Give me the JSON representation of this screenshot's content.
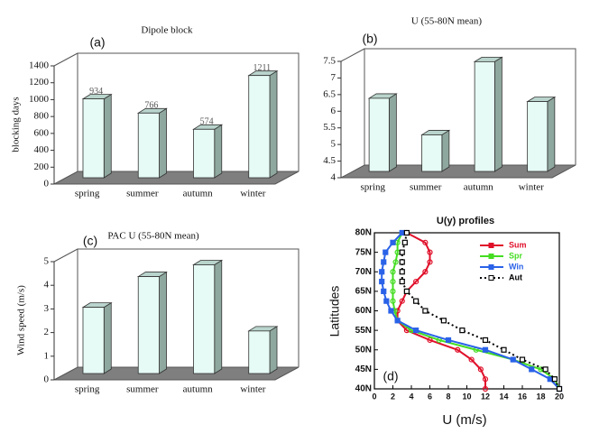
{
  "chart_data": [
    {
      "type": "bar",
      "title": "Dipole block",
      "panel_label": "(a)",
      "ylabel": "blocking days",
      "categories": [
        "spring",
        "summer",
        "autumn",
        "winter"
      ],
      "values": [
        934,
        766,
        574,
        1211
      ],
      "data_labels": true,
      "color": "#e6fbf5",
      "floor_color": "#7f7f7f",
      "ylim": [
        0,
        1400
      ],
      "yticks": [
        0,
        200,
        400,
        600,
        800,
        1000,
        1200,
        1400
      ]
    },
    {
      "type": "bar",
      "title": "U (55-80N mean)",
      "panel_label": "(b)",
      "categories": [
        "spring",
        "summer",
        "autumn",
        "winter"
      ],
      "values": [
        6.2,
        5.1,
        7.3,
        6.1
      ],
      "data_labels": false,
      "color": "#e6fbf5",
      "floor_color": "#7f7f7f",
      "ylim": [
        4,
        7.5
      ],
      "yticks": [
        4,
        4.5,
        5,
        5.5,
        6,
        6.5,
        7,
        7.5
      ]
    },
    {
      "type": "bar",
      "title": "PAC U (55-80N mean)",
      "panel_label": "(c)",
      "ylabel": "Wind speed (m/s)",
      "categories": [
        "spring",
        "summer",
        "autumn",
        "winter"
      ],
      "values": [
        2.8,
        4.1,
        4.6,
        1.8
      ],
      "data_labels": false,
      "color": "#e6fbf5",
      "floor_color": "#7f7f7f",
      "ylim": [
        0,
        5
      ],
      "yticks": [
        0,
        1,
        2,
        3,
        4,
        5
      ]
    },
    {
      "type": "line",
      "title": "U(y) profiles",
      "panel_label": "(d)",
      "xlabel": "U (m/s)",
      "ylabel": "Latitudes",
      "y": [
        40,
        42.5,
        45,
        47.5,
        50,
        52.5,
        55,
        57.5,
        60,
        62.5,
        65,
        67.5,
        70,
        72.5,
        75,
        77.5,
        80
      ],
      "series": [
        {
          "name": "Sum",
          "color": "#e0102a",
          "marker": "circle",
          "linestyle": "solid",
          "values": [
            12,
            12,
            11.5,
            10.5,
            9,
            6,
            3.5,
            2.5,
            2.5,
            3,
            3.5,
            4.5,
            5.5,
            6,
            6,
            5.5,
            3.5
          ]
        },
        {
          "name": "Spr",
          "color": "#44dd22",
          "marker": "circle",
          "linestyle": "solid",
          "values": [
            20,
            19.5,
            18,
            15,
            11,
            7,
            4,
            2.5,
            2.2,
            2,
            2,
            2,
            2,
            2.3,
            2.5,
            2.5,
            3
          ]
        },
        {
          "name": "Win",
          "color": "#2a62e8",
          "marker": "square",
          "linestyle": "solid",
          "values": [
            20,
            19,
            17,
            15,
            12,
            8,
            4.5,
            2.5,
            1.8,
            1.3,
            1,
            0.8,
            0.8,
            1,
            1.2,
            2,
            3
          ]
        },
        {
          "name": "Aut",
          "color": "#000000",
          "marker": "open-square",
          "linestyle": "dotted",
          "values": [
            20,
            19.5,
            18.5,
            16,
            14,
            12,
            9.5,
            7.5,
            5.5,
            4.5,
            3.5,
            3,
            3,
            3,
            3,
            3.3,
            3.5
          ]
        }
      ],
      "xlim": [
        0,
        20
      ],
      "xticks": [
        0,
        2,
        4,
        6,
        8,
        10,
        12,
        14,
        16,
        18,
        20
      ],
      "ylim": [
        40,
        80
      ],
      "yticks": [
        {
          "value": 40,
          "label": "40N"
        },
        {
          "value": 45,
          "label": "45N"
        },
        {
          "value": 50,
          "label": "50N"
        },
        {
          "value": 55,
          "label": "55N"
        },
        {
          "value": 60,
          "label": "60N"
        },
        {
          "value": 65,
          "label": "65N"
        },
        {
          "value": 70,
          "label": "70N"
        },
        {
          "value": 75,
          "label": "75N"
        },
        {
          "value": 80,
          "label": "80N"
        }
      ],
      "legend": "upper right"
    }
  ]
}
